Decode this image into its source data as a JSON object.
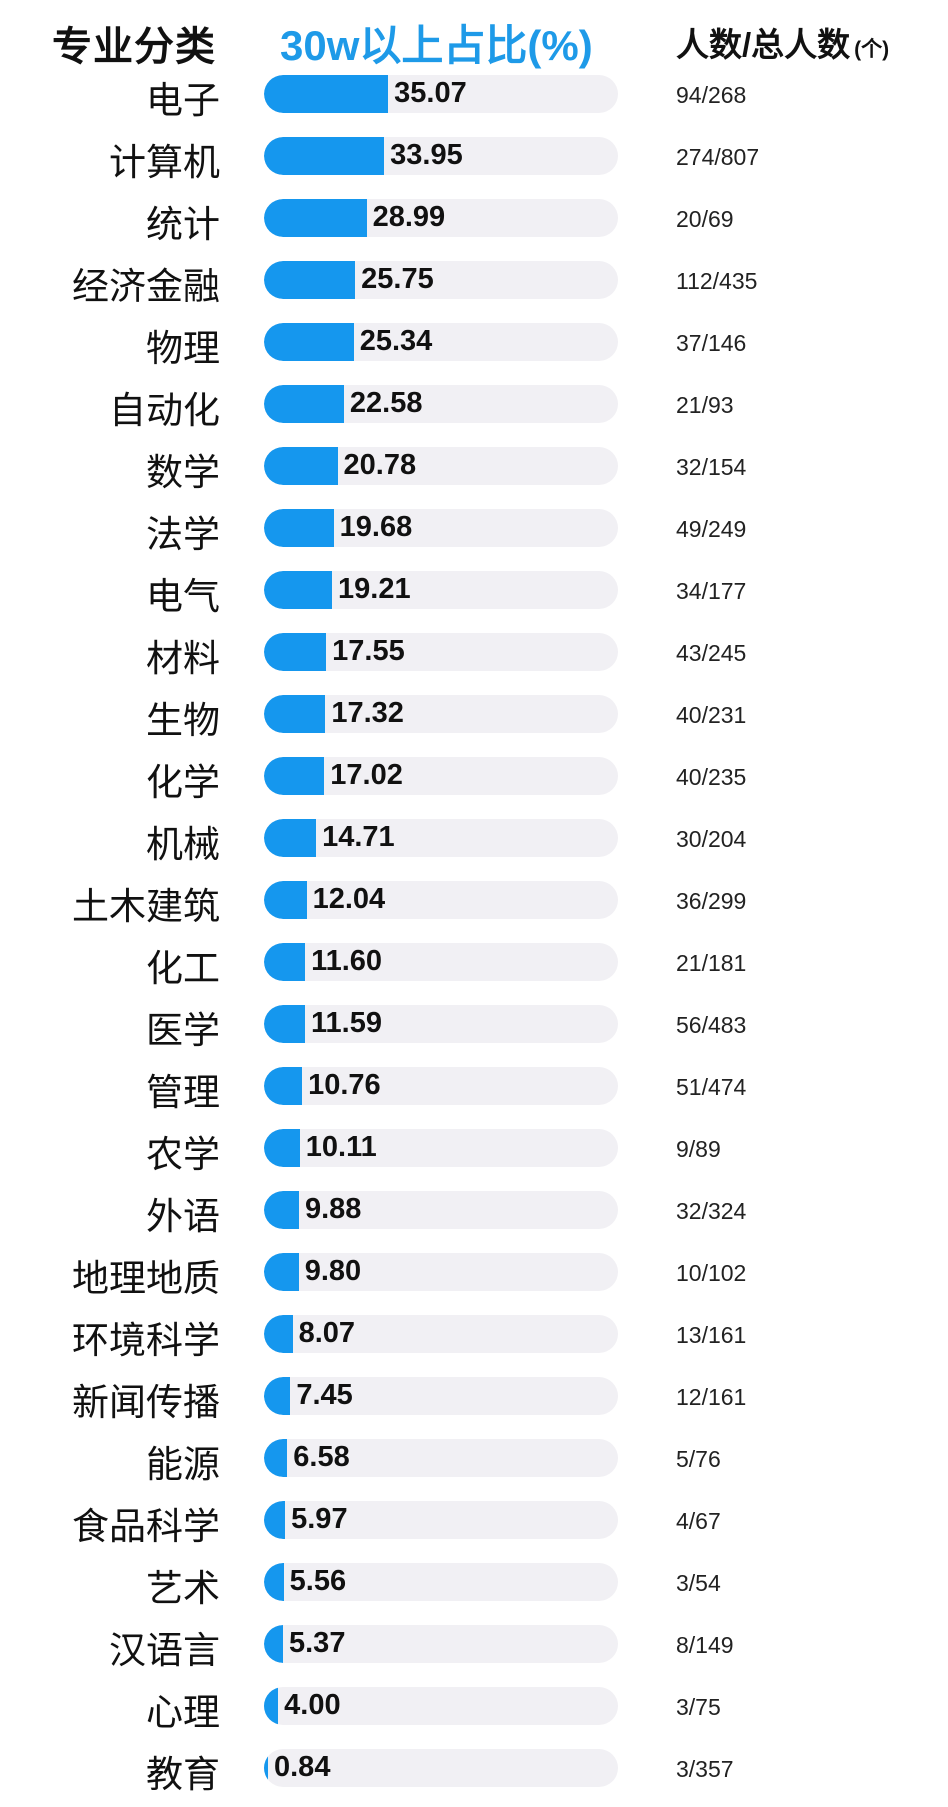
{
  "header": {
    "major": "专业分类",
    "percent": "30w以上占比(%)",
    "count": "人数/总人数",
    "count_unit": "(个)"
  },
  "colors": {
    "accent": "#1597ee",
    "title_accent": "#1e9ae8",
    "track": "#f1f0f4"
  },
  "chart_data": {
    "type": "bar",
    "orientation": "horizontal",
    "xlim": [
      0,
      100
    ],
    "categories": [
      "电子",
      "计算机",
      "统计",
      "经济金融",
      "物理",
      "自动化",
      "数学",
      "法学",
      "电气",
      "材料",
      "生物",
      "化学",
      "机械",
      "土木建筑",
      "化工",
      "医学",
      "管理",
      "农学",
      "外语",
      "地理地质",
      "环境科学",
      "新闻传播",
      "能源",
      "食品科学",
      "艺术",
      "汉语言",
      "心理",
      "教育"
    ],
    "values": [
      35.07,
      33.95,
      28.99,
      25.75,
      25.34,
      22.58,
      20.78,
      19.68,
      19.21,
      17.55,
      17.32,
      17.02,
      14.71,
      12.04,
      11.6,
      11.59,
      10.76,
      10.11,
      9.88,
      9.8,
      8.07,
      7.45,
      6.58,
      5.97,
      5.56,
      5.37,
      4.0,
      0.84
    ],
    "value_labels": [
      "35.07",
      "33.95",
      "28.99",
      "25.75",
      "25.34",
      "22.58",
      "20.78",
      "19.68",
      "19.21",
      "17.55",
      "17.32",
      "17.02",
      "14.71",
      "12.04",
      "11.60",
      "11.59",
      "10.76",
      "10.11",
      "9.88",
      "9.80",
      "8.07",
      "7.45",
      "6.58",
      "5.97",
      "5.56",
      "5.37",
      "4.00",
      "0.84"
    ],
    "counts": [
      "94/268",
      "274/807",
      "20/69",
      "112/435",
      "37/146",
      "21/93",
      "32/154",
      "49/249",
      "34/177",
      "43/245",
      "40/231",
      "40/235",
      "30/204",
      "36/299",
      "21/181",
      "56/483",
      "51/474",
      "9/89",
      "32/324",
      "10/102",
      "13/161",
      "12/161",
      "5/76",
      "4/67",
      "3/54",
      "8/149",
      "3/75",
      "3/357"
    ]
  }
}
